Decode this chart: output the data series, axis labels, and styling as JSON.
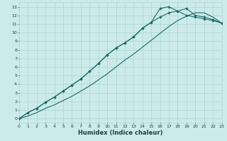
{
  "xlabel": "Humidex (Indice chaleur)",
  "xlim": [
    0,
    23
  ],
  "ylim": [
    -0.5,
    13.5
  ],
  "xticks": [
    0,
    1,
    2,
    3,
    4,
    5,
    6,
    7,
    8,
    9,
    10,
    11,
    12,
    13,
    14,
    15,
    16,
    17,
    18,
    19,
    20,
    21,
    22,
    23
  ],
  "yticks": [
    0,
    1,
    2,
    3,
    4,
    5,
    6,
    7,
    8,
    9,
    10,
    11,
    12,
    13
  ],
  "bg_color": "#cceaea",
  "grid_color": "#aad4d4",
  "line_color": "#1a6b6b",
  "line1_x": [
    0,
    1,
    2,
    3,
    4,
    5,
    6,
    7,
    8,
    9,
    10,
    11,
    12,
    13,
    14,
    15,
    16,
    17,
    18,
    19,
    20,
    21,
    22,
    23
  ],
  "line1_y": [
    0,
    0.7,
    1.2,
    1.9,
    2.5,
    3.2,
    3.9,
    4.6,
    5.5,
    6.4,
    7.4,
    8.2,
    8.8,
    9.5,
    10.5,
    11.2,
    12.8,
    13.0,
    12.5,
    12.0,
    11.8,
    11.6,
    11.4,
    11.1
  ],
  "line2_x": [
    0,
    1,
    2,
    3,
    4,
    5,
    6,
    7,
    8,
    9,
    10,
    11,
    12,
    13,
    14,
    15,
    16,
    17,
    18,
    19,
    20,
    21,
    22,
    23
  ],
  "line2_y": [
    0,
    0.7,
    1.2,
    1.9,
    2.5,
    3.2,
    3.9,
    4.6,
    5.5,
    6.4,
    7.4,
    8.2,
    8.8,
    9.5,
    10.5,
    11.2,
    11.8,
    12.3,
    12.5,
    12.8,
    12.0,
    11.8,
    11.5,
    11.1
  ],
  "line3_x": [
    0,
    1,
    2,
    3,
    4,
    5,
    6,
    7,
    8,
    9,
    10,
    11,
    12,
    13,
    14,
    15,
    16,
    17,
    18,
    19,
    20,
    21,
    22,
    23
  ],
  "line3_y": [
    0,
    0.3,
    0.7,
    1.2,
    1.6,
    2.1,
    2.6,
    3.2,
    3.8,
    4.5,
    5.2,
    6.0,
    6.8,
    7.5,
    8.3,
    9.1,
    9.9,
    10.7,
    11.4,
    11.9,
    12.3,
    12.3,
    11.8,
    11.1
  ],
  "marker": "D",
  "marker_size": 1.8,
  "line_width": 0.8,
  "font_color": "#1a4040",
  "tick_fontsize": 4.5,
  "label_fontsize": 6.0,
  "label_fontweight": "bold"
}
